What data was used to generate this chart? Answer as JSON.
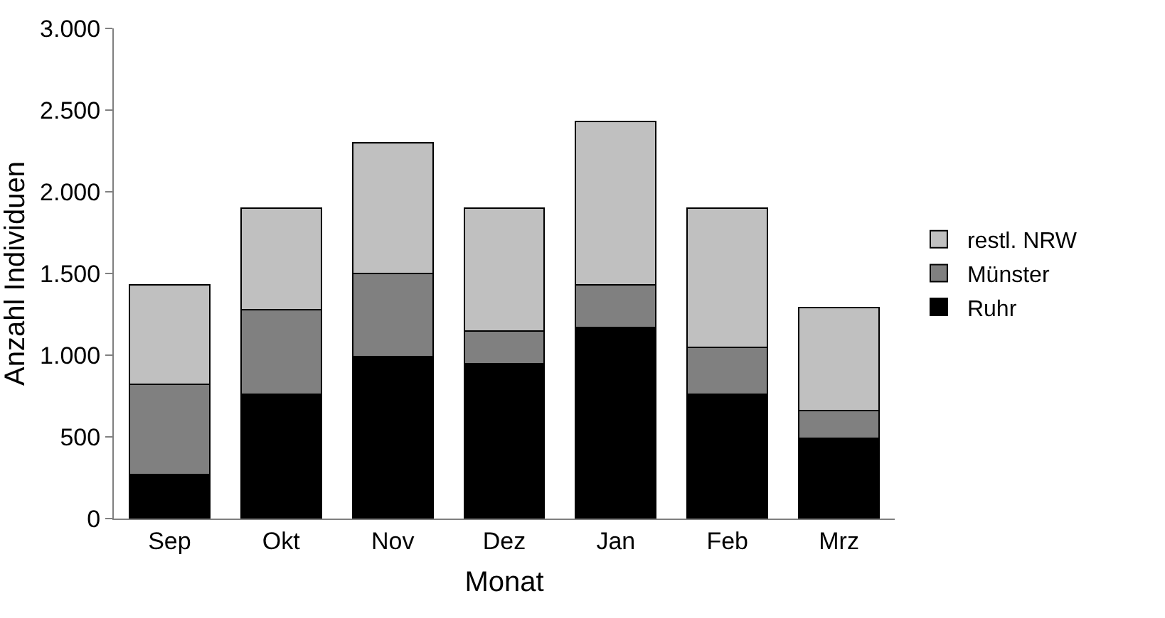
{
  "chart_data": {
    "type": "bar",
    "stacked": true,
    "xlabel": "Monat",
    "ylabel": "Anzahl Individuen",
    "categories": [
      "Sep",
      "Okt",
      "Nov",
      "Dez",
      "Jan",
      "Feb",
      "Mrz"
    ],
    "series": [
      {
        "name": "Ruhr",
        "color": "#000000",
        "values": [
          270,
          760,
          990,
          950,
          1170,
          760,
          490
        ]
      },
      {
        "name": "Münster",
        "color": "#808080",
        "values": [
          550,
          520,
          510,
          200,
          260,
          290,
          170
        ]
      },
      {
        "name": "restl. NRW",
        "color": "#c0c0c0",
        "values": [
          610,
          620,
          800,
          750,
          1000,
          850,
          630
        ]
      }
    ],
    "ylim": [
      0,
      3000
    ],
    "yticks": [
      0,
      {
        "value": 500,
        "label": "500"
      },
      {
        "value": 1000,
        "label": "1.000"
      },
      {
        "value": 1500,
        "label": "1.500"
      },
      {
        "value": 2000,
        "label": "2.000"
      },
      {
        "value": 2500,
        "label": "2.500"
      },
      {
        "value": 3000,
        "label": "3.000"
      }
    ],
    "grid": false,
    "legend": "right"
  }
}
